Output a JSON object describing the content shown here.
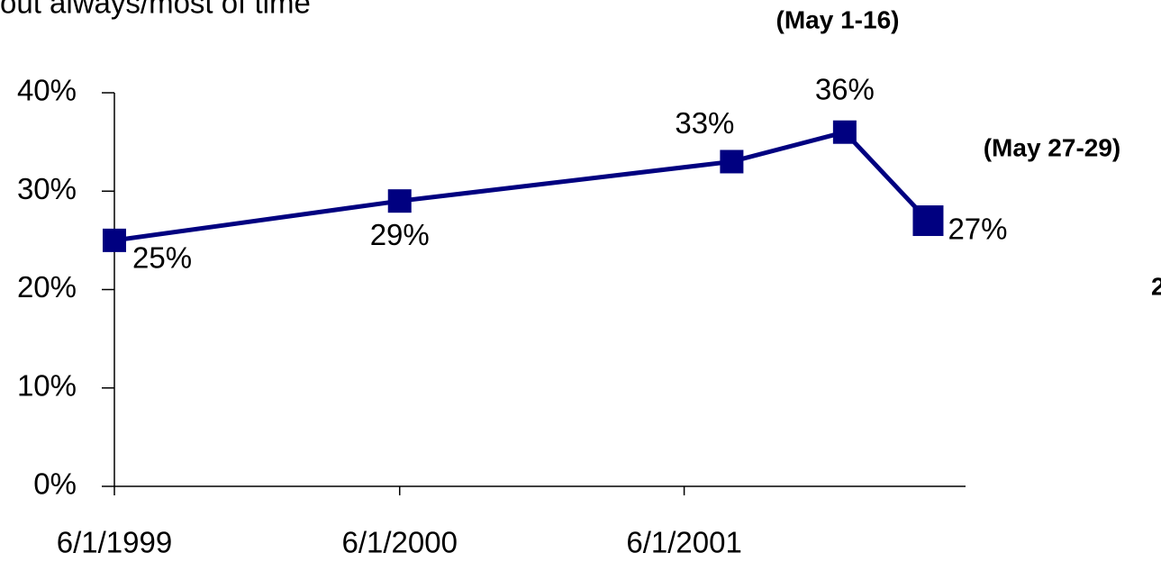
{
  "chart_data": {
    "type": "line",
    "subtitle": "out always/most of time",
    "x": [
      "1999-06-01",
      "2000-06-01",
      "2001-08-01",
      "2001-12-24",
      "2002-04-10"
    ],
    "series": [
      {
        "name": "always/most of time",
        "color": "#000080",
        "values": [
          25,
          29,
          33,
          36,
          27
        ],
        "value_labels": [
          "25%",
          "29%",
          "33%",
          "36%",
          "27%"
        ]
      }
    ],
    "annotations": [
      "(May 1-16)",
      "(May 27-29)",
      "2"
    ],
    "xlim": [
      "1999-06-01",
      "2002-05-28"
    ],
    "xticks": [
      {
        "value": "1999-06-01",
        "label": "6/1/1999"
      },
      {
        "value": "2000-06-01",
        "label": "6/1/2000"
      },
      {
        "value": "2001-06-01",
        "label": "6/1/2001"
      }
    ],
    "ylim": [
      0,
      40
    ],
    "yticks": [
      {
        "value": 0,
        "label": "0%"
      },
      {
        "value": 10,
        "label": "10%"
      },
      {
        "value": 20,
        "label": "20%"
      },
      {
        "value": 30,
        "label": "30%"
      },
      {
        "value": 40,
        "label": "40%"
      }
    ],
    "grid": false
  }
}
